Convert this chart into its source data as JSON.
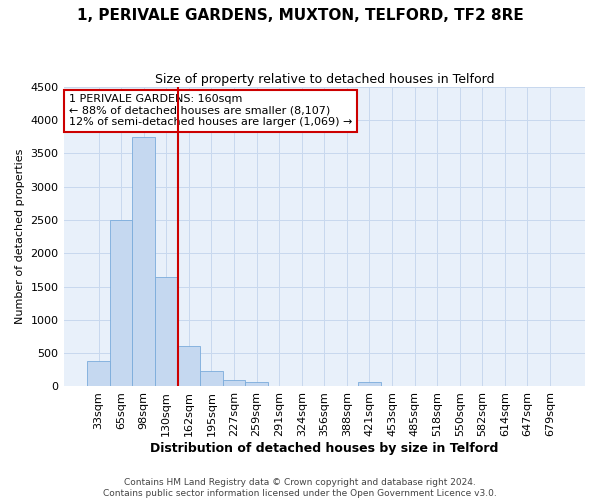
{
  "title": "1, PERIVALE GARDENS, MUXTON, TELFORD, TF2 8RE",
  "subtitle": "Size of property relative to detached houses in Telford",
  "xlabel": "Distribution of detached houses by size in Telford",
  "ylabel": "Number of detached properties",
  "footer_line1": "Contains HM Land Registry data © Crown copyright and database right 2024.",
  "footer_line2": "Contains public sector information licensed under the Open Government Licence v3.0.",
  "bar_categories": [
    "33sqm",
    "65sqm",
    "98sqm",
    "130sqm",
    "162sqm",
    "195sqm",
    "227sqm",
    "259sqm",
    "291sqm",
    "324sqm",
    "356sqm",
    "388sqm",
    "421sqm",
    "453sqm",
    "485sqm",
    "518sqm",
    "550sqm",
    "582sqm",
    "614sqm",
    "647sqm",
    "679sqm"
  ],
  "bar_values": [
    375,
    2500,
    3750,
    1650,
    600,
    230,
    100,
    65,
    0,
    0,
    0,
    0,
    60,
    0,
    0,
    0,
    0,
    0,
    0,
    0,
    0
  ],
  "bar_color": "#c5d8f0",
  "bar_edge_color": "#7aabdb",
  "grid_color": "#c8d8ee",
  "background_color": "#e8f0fa",
  "vline_color": "#cc0000",
  "vline_pos": 3.5,
  "annotation_line1": "1 PERIVALE GARDENS: 160sqm",
  "annotation_line2": "← 88% of detached houses are smaller (8,107)",
  "annotation_line3": "12% of semi-detached houses are larger (1,069) →",
  "annotation_box_color": "#cc0000",
  "ylim": [
    0,
    4500
  ],
  "yticks": [
    0,
    500,
    1000,
    1500,
    2000,
    2500,
    3000,
    3500,
    4000,
    4500
  ],
  "title_fontsize": 11,
  "subtitle_fontsize": 9
}
